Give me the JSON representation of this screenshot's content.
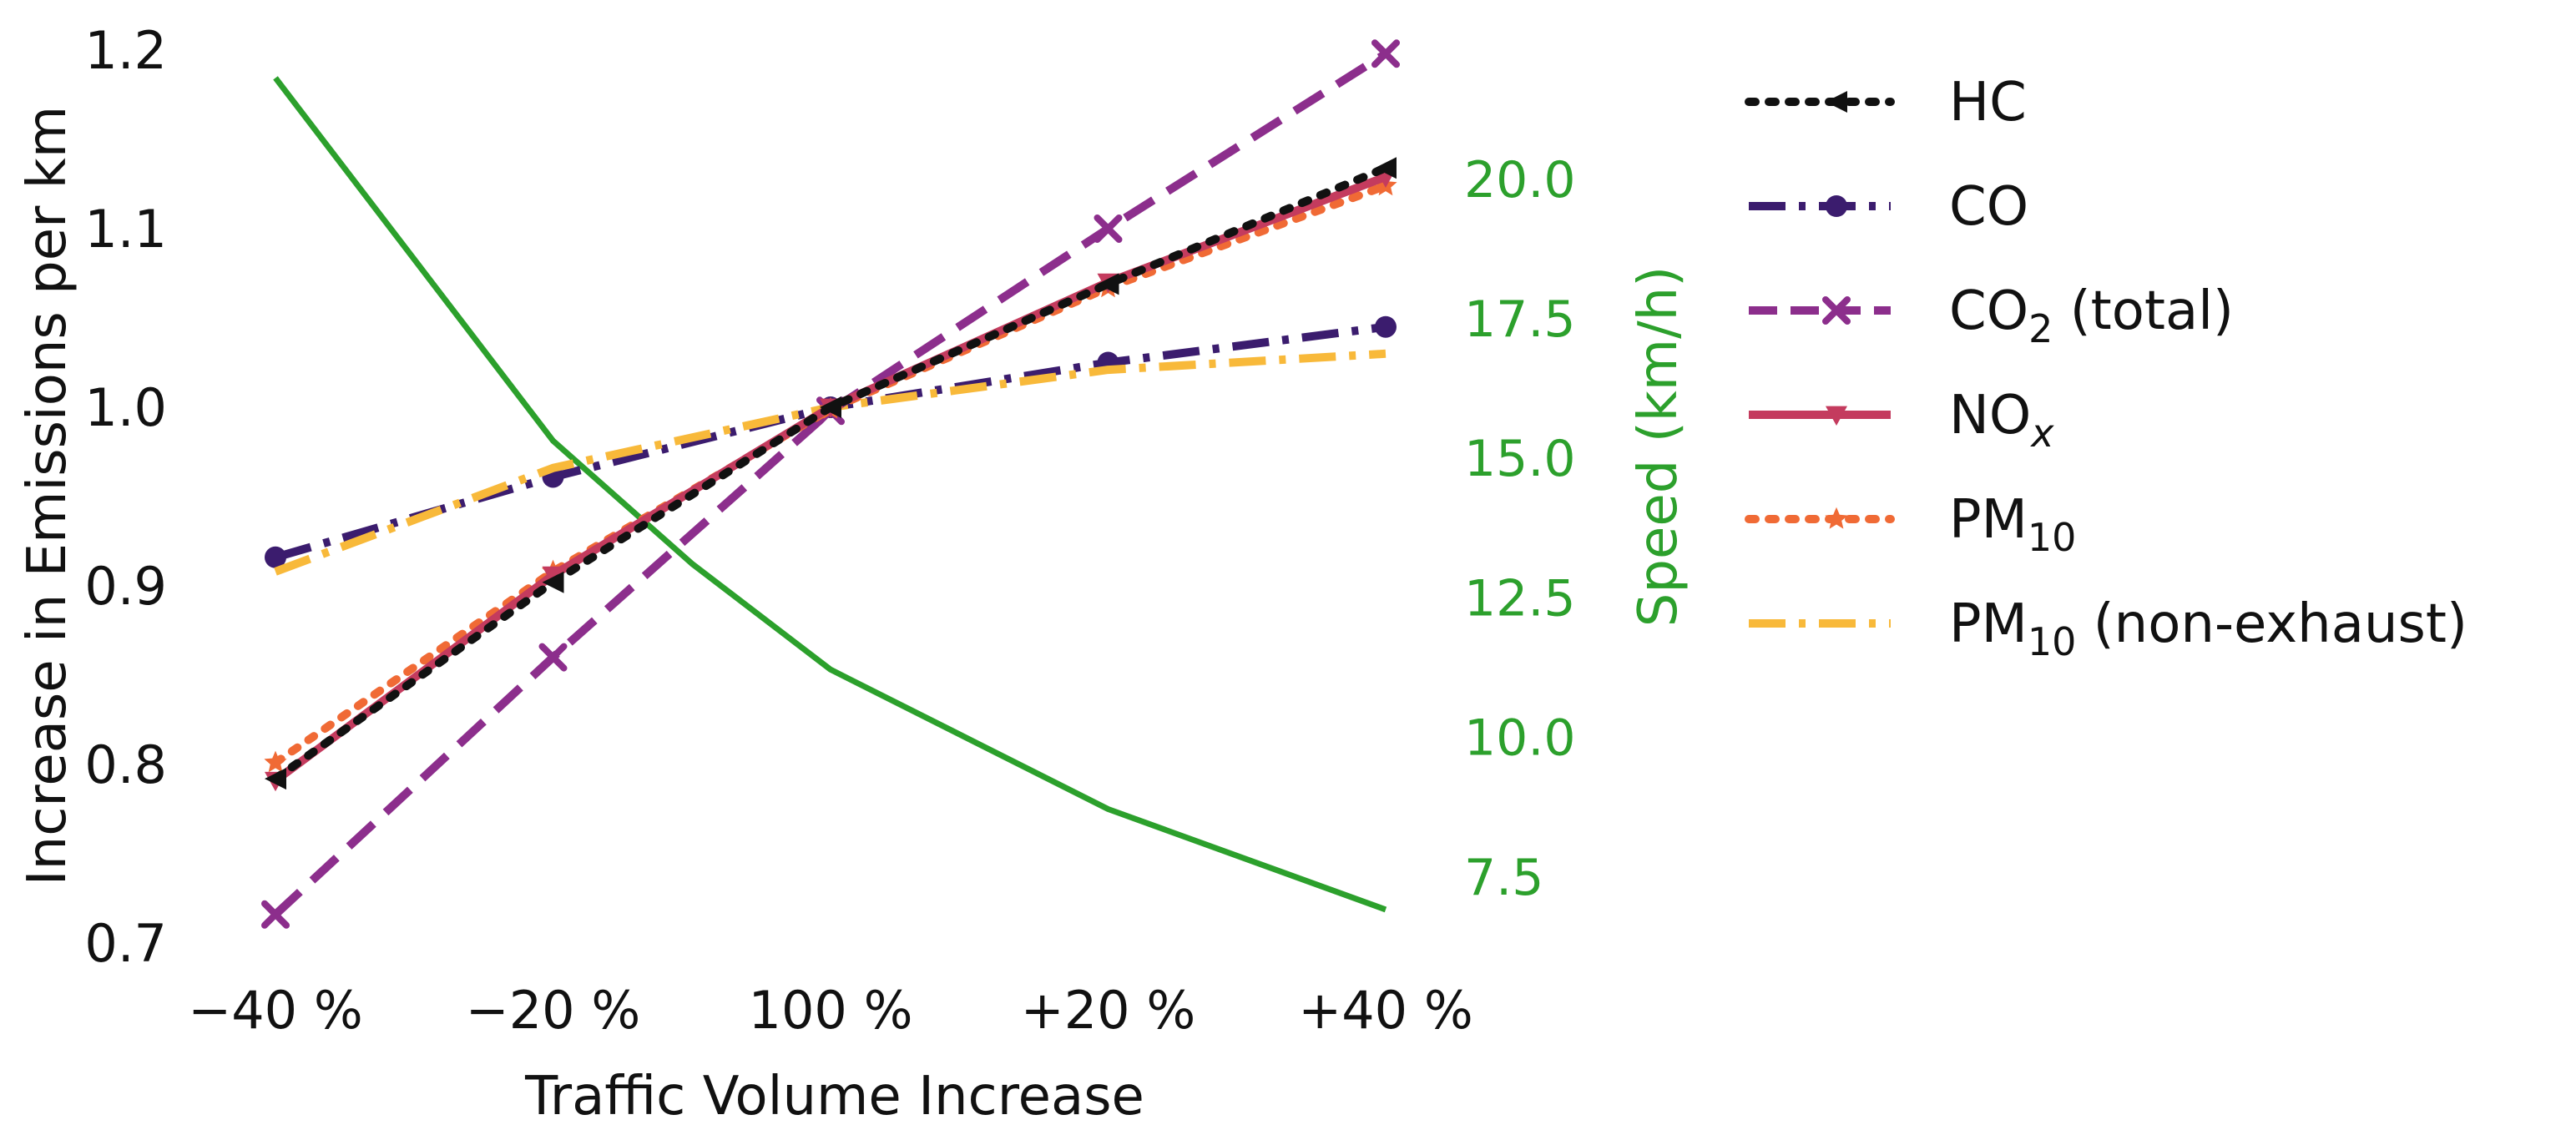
{
  "chart_data": {
    "type": "line",
    "title": "",
    "xlabel": "Traffic Volume Increase",
    "ylabel": "Increase in Emissions per km",
    "y2label": "Speed (km/h)",
    "categories": [
      "−40 %",
      "−20 %",
      "100 %",
      "+20 %",
      "+40 %"
    ],
    "ylim": [
      0.7,
      1.2
    ],
    "yticks": [
      "0.7",
      "0.8",
      "0.9",
      "1.0",
      "1.1",
      "1.2"
    ],
    "y2lim": [
      6.3,
      22.3
    ],
    "y2ticks": [
      "7.5",
      "10.0",
      "12.5",
      "15.0",
      "17.5",
      "20.0"
    ],
    "grid": false,
    "legend_position": "right, outside plot",
    "series": [
      {
        "name": "HC",
        "legend": {
          "base": "HC",
          "sub": "",
          "suffix": ""
        },
        "color": "#111111",
        "style": "dotted",
        "marker": "triangle-left",
        "axis": "left",
        "values": [
          0.792,
          0.902,
          1.0,
          1.069,
          1.134
        ]
      },
      {
        "name": "CO",
        "legend": {
          "base": "CO",
          "sub": "",
          "suffix": ""
        },
        "color": "#3b1c6e",
        "style": "dashdot",
        "marker": "circle",
        "axis": "left",
        "values": [
          0.916,
          0.961,
          1.0,
          1.025,
          1.045
        ]
      },
      {
        "name": "CO2 (total)",
        "legend": {
          "base": "CO",
          "sub": "2",
          "suffix": " (total)"
        },
        "color": "#8c2e8c",
        "style": "dashed",
        "marker": "x",
        "axis": "left",
        "values": [
          0.716,
          0.86,
          0.998,
          1.1,
          1.198
        ]
      },
      {
        "name": "NOx",
        "legend": {
          "base": "NO",
          "sub": "x",
          "suffix": ""
        },
        "color": "#c43b5e",
        "style": "solid",
        "marker": "triangle-down",
        "axis": "left",
        "values": [
          0.791,
          0.906,
          1.0,
          1.07,
          1.129
        ]
      },
      {
        "name": "PM10",
        "legend": {
          "base": "PM",
          "sub": "10",
          "suffix": ""
        },
        "color": "#f06a35",
        "style": "dotted",
        "marker": "star",
        "axis": "left",
        "values": [
          0.801,
          0.908,
          0.999,
          1.067,
          1.124
        ]
      },
      {
        "name": "PM10 (non-exhaust)",
        "legend": {
          "base": "PM",
          "sub": "10",
          "suffix": " (non-exhaust)"
        },
        "color": "#f8b93a",
        "style": "dashdot",
        "marker": "none",
        "axis": "left",
        "values": [
          0.908,
          0.966,
          1.0,
          1.021,
          1.03
        ]
      },
      {
        "name": "Speed",
        "color": "#2ca02c",
        "style": "solid",
        "marker": "none",
        "axis": "right",
        "x": [
          0,
          1,
          1.5,
          2,
          3,
          4
        ],
        "values": [
          21.8,
          15.3,
          13.1,
          11.2,
          8.7,
          6.9
        ]
      }
    ]
  }
}
